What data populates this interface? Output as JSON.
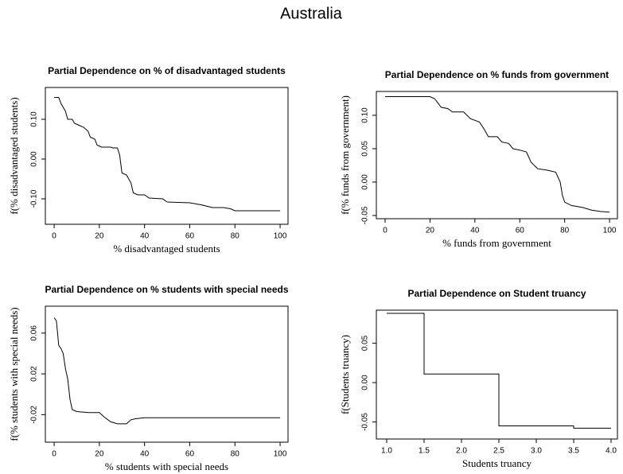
{
  "title": "Australia",
  "chart_data": [
    {
      "type": "line",
      "title": "Partial Dependence on % of disadvantaged students",
      "xlabel": "% disadvantaged students",
      "ylabel": "f(% disadvantaged students)",
      "color": "#000000",
      "x": [
        0,
        2,
        3,
        5,
        6,
        8,
        9,
        11,
        13,
        15,
        16,
        18,
        19,
        21,
        25,
        26,
        28,
        29,
        30,
        32,
        34,
        35,
        37,
        40,
        42,
        48,
        50,
        60,
        65,
        70,
        75,
        78,
        80,
        100
      ],
      "values": [
        0.155,
        0.155,
        0.14,
        0.12,
        0.1,
        0.1,
        0.09,
        0.085,
        0.08,
        0.07,
        0.055,
        0.05,
        0.035,
        0.03,
        0.03,
        0.028,
        0.028,
        0.01,
        -0.035,
        -0.04,
        -0.06,
        -0.085,
        -0.09,
        -0.09,
        -0.098,
        -0.1,
        -0.108,
        -0.11,
        -0.115,
        -0.122,
        -0.122,
        -0.125,
        -0.13,
        -0.13
      ],
      "xlim": [
        -3.9,
        103.5
      ],
      "ylim": [
        -0.164,
        0.18
      ],
      "xticks": [
        0,
        20,
        40,
        60,
        80,
        100
      ],
      "yticks": [
        {
          "value": -0.1,
          "label": "-0.10"
        },
        {
          "value": 0,
          "label": "0.00"
        },
        {
          "value": 0.1,
          "label": "0.10"
        }
      ]
    },
    {
      "type": "line",
      "title": "Partial Dependence on % funds from government",
      "xlabel": "% funds from government",
      "ylabel": "f(% funds from government)",
      "color": "#000000",
      "x": [
        0,
        20,
        22,
        25,
        28,
        30,
        35,
        38,
        42,
        44,
        46,
        50,
        52,
        55,
        57,
        60,
        63,
        65,
        68,
        72,
        76,
        78,
        79,
        80,
        83,
        88,
        92,
        96,
        100
      ],
      "values": [
        0.128,
        0.128,
        0.125,
        0.112,
        0.11,
        0.105,
        0.105,
        0.095,
        0.09,
        0.08,
        0.068,
        0.068,
        0.06,
        0.058,
        0.05,
        0.048,
        0.045,
        0.03,
        0.02,
        0.018,
        0.015,
        0.0,
        -0.02,
        -0.03,
        -0.035,
        -0.038,
        -0.042,
        -0.044,
        -0.045
      ],
      "xlim": [
        -3.9,
        103.5
      ],
      "ylim": [
        -0.0548,
        0.1357
      ],
      "xticks": [
        0,
        20,
        40,
        60,
        80,
        100
      ],
      "yticks": [
        -0.05,
        {
          "value": 0,
          "label": "0.00"
        },
        0.05,
        {
          "value": 0.1,
          "label": "0.10"
        }
      ]
    },
    {
      "type": "line",
      "title": "Partial Dependence on % students with special needs",
      "xlabel": "% students with special needs",
      "ylabel": "f(% students with special needs)",
      "color": "#000000",
      "x": [
        0,
        1,
        2,
        3,
        4,
        5,
        6,
        7,
        8,
        10,
        15,
        20,
        22,
        25,
        28,
        32,
        34,
        36,
        40,
        100
      ],
      "values": [
        0.075,
        0.072,
        0.048,
        0.045,
        0.04,
        0.025,
        0.015,
        -0.005,
        -0.015,
        -0.017,
        -0.018,
        -0.018,
        -0.022,
        -0.027,
        -0.029,
        -0.029,
        -0.025,
        -0.024,
        -0.023,
        -0.023
      ],
      "xlim": [
        -3.9,
        103.5
      ],
      "ylim": [
        -0.047,
        0.0864
      ],
      "xticks": [
        0,
        20,
        40,
        60,
        80,
        100
      ],
      "yticks": [
        -0.02,
        0.02,
        0.06
      ]
    },
    {
      "type": "line",
      "title": "Partial Dependence on Student truancy",
      "xlabel": "Students truancy",
      "ylabel": "f(Students truancy)",
      "color": "#000000",
      "x": [
        1,
        1.5,
        1.5,
        2.5,
        2.5,
        3.5,
        3.5,
        4
      ],
      "values": [
        0.088,
        0.088,
        0.011,
        0.011,
        -0.055,
        -0.055,
        -0.058,
        -0.058
      ],
      "xlim": [
        0.862,
        4.085
      ],
      "ylim": [
        -0.0717,
        0.092
      ],
      "xticks": [
        {
          "value": 1,
          "label": "1.0"
        },
        1.5,
        {
          "value": 2,
          "label": "2.0"
        },
        2.5,
        {
          "value": 3,
          "label": "3.0"
        },
        3.5,
        {
          "value": 4,
          "label": "4.0"
        }
      ],
      "yticks": [
        -0.05,
        {
          "value": 0,
          "label": "0.00"
        },
        0.05
      ]
    }
  ]
}
